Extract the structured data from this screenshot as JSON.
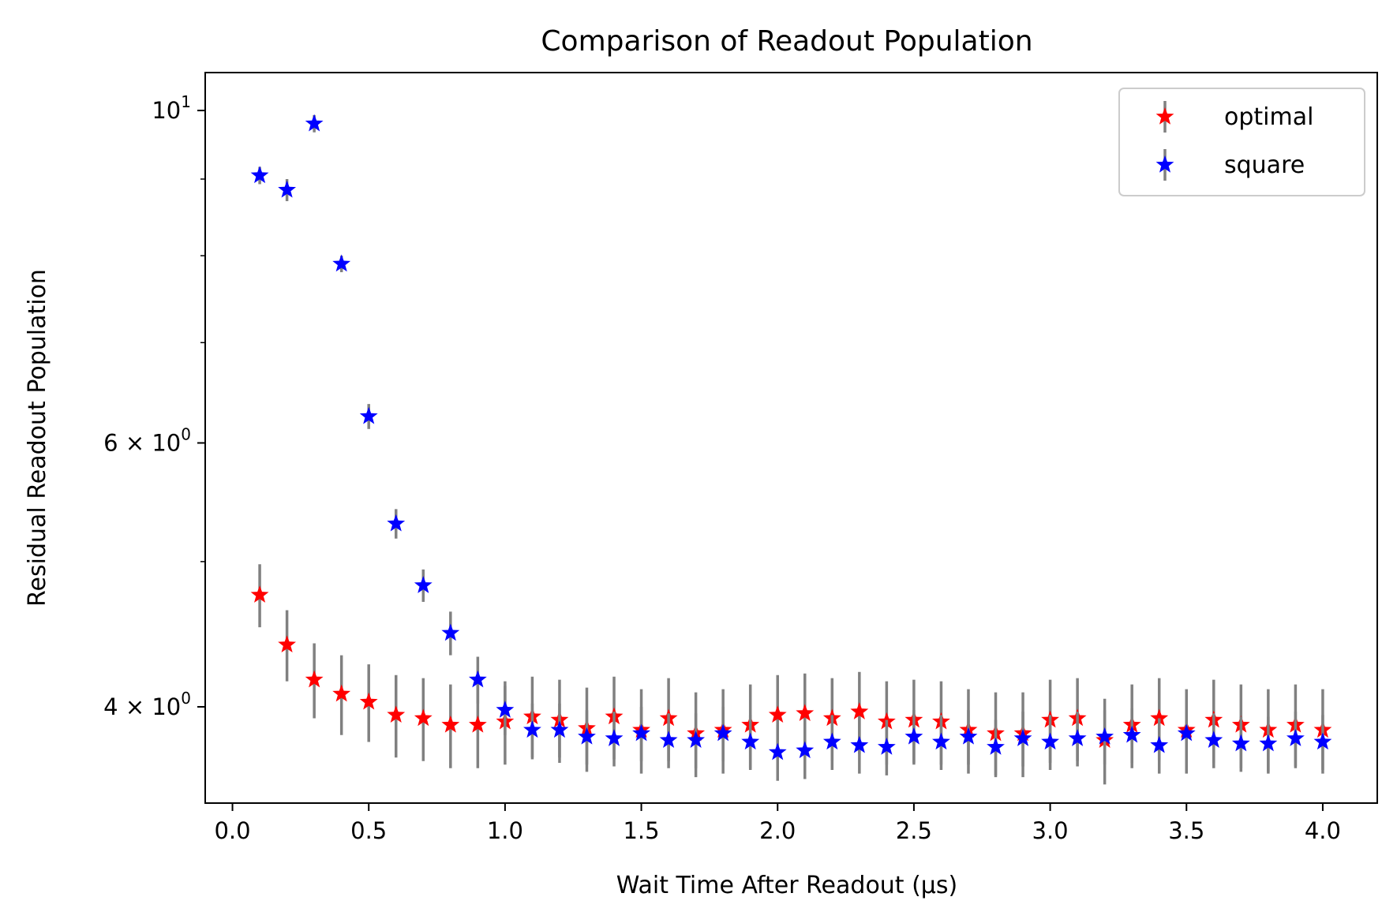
{
  "chart_data": {
    "type": "scatter",
    "title": "Comparison of Readout Population",
    "xlabel": "Wait Time After Readout (μs)",
    "ylabel": "Residual Readout Population",
    "xlim": [
      -0.1,
      4.2
    ],
    "ylim": [
      3.45,
      10.6
    ],
    "y_scale": "log",
    "grid": false,
    "legend_position": "top-right",
    "x_ticks": [
      {
        "value": 0.0,
        "label": "0.0"
      },
      {
        "value": 0.5,
        "label": "0.5"
      },
      {
        "value": 1.0,
        "label": "1.0"
      },
      {
        "value": 1.5,
        "label": "1.5"
      },
      {
        "value": 2.0,
        "label": "2.0"
      },
      {
        "value": 2.5,
        "label": "2.5"
      },
      {
        "value": 3.0,
        "label": "3.0"
      },
      {
        "value": 3.5,
        "label": "3.5"
      },
      {
        "value": 4.0,
        "label": "4.0"
      }
    ],
    "y_ticks": [
      {
        "value": 10,
        "base": "10",
        "exp": "1"
      },
      {
        "value": 6,
        "base": "6 × 10",
        "exp": "0"
      },
      {
        "value": 4,
        "base": "4 × 10",
        "exp": "0"
      }
    ],
    "y_minor_ticks": [
      5,
      7,
      8,
      9
    ],
    "errorbar_color": "#808080",
    "x": [
      0.1,
      0.2,
      0.3,
      0.4,
      0.5,
      0.6,
      0.7,
      0.8,
      0.9,
      1.0,
      1.1,
      1.2,
      1.3,
      1.4,
      1.5,
      1.6,
      1.7,
      1.8,
      1.9,
      2.0,
      2.1,
      2.2,
      2.3,
      2.4,
      2.5,
      2.6,
      2.7,
      2.8,
      2.9,
      3.0,
      3.1,
      3.2,
      3.3,
      3.4,
      3.5,
      3.6,
      3.7,
      3.8,
      3.9,
      4.0
    ],
    "series": [
      {
        "name": "optimal",
        "color": "#ff0000",
        "marker": "star",
        "values": [
          4.75,
          4.4,
          4.17,
          4.08,
          4.03,
          3.95,
          3.93,
          3.89,
          3.89,
          3.91,
          3.94,
          3.92,
          3.87,
          3.94,
          3.86,
          3.93,
          3.84,
          3.86,
          3.89,
          3.95,
          3.96,
          3.93,
          3.97,
          3.91,
          3.92,
          3.91,
          3.86,
          3.84,
          3.84,
          3.92,
          3.93,
          3.8,
          3.89,
          3.93,
          3.86,
          3.92,
          3.89,
          3.86,
          3.89,
          3.86
        ],
        "errors": [
          0.23,
          0.24,
          0.24,
          0.25,
          0.24,
          0.25,
          0.25,
          0.25,
          0.25,
          0.25,
          0.25,
          0.25,
          0.25,
          0.25,
          0.25,
          0.25,
          0.25,
          0.25,
          0.25,
          0.25,
          0.25,
          0.25,
          0.25,
          0.25,
          0.25,
          0.25,
          0.25,
          0.25,
          0.25,
          0.25,
          0.25,
          0.25,
          0.25,
          0.25,
          0.25,
          0.25,
          0.25,
          0.25,
          0.25,
          0.25
        ]
      },
      {
        "name": "square",
        "color": "#0000ff",
        "marker": "star",
        "values": [
          9.05,
          8.85,
          9.8,
          7.9,
          6.25,
          5.3,
          4.82,
          4.48,
          4.17,
          3.98,
          3.86,
          3.86,
          3.82,
          3.81,
          3.84,
          3.8,
          3.8,
          3.84,
          3.79,
          3.73,
          3.74,
          3.79,
          3.77,
          3.76,
          3.82,
          3.79,
          3.82,
          3.76,
          3.81,
          3.79,
          3.81,
          3.82,
          3.83,
          3.77,
          3.84,
          3.8,
          3.78,
          3.78,
          3.81,
          3.79
        ],
        "errors": [
          0.12,
          0.15,
          0.13,
          0.1,
          0.12,
          0.12,
          0.12,
          0.15,
          0.15,
          0.15,
          0.16,
          0.16,
          0.16,
          0.16,
          0.16,
          0.16,
          0.16,
          0.16,
          0.16,
          0.16,
          0.16,
          0.16,
          0.16,
          0.16,
          0.16,
          0.16,
          0.16,
          0.16,
          0.16,
          0.16,
          0.16,
          0.16,
          0.16,
          0.16,
          0.16,
          0.16,
          0.16,
          0.16,
          0.16,
          0.16
        ]
      }
    ]
  }
}
